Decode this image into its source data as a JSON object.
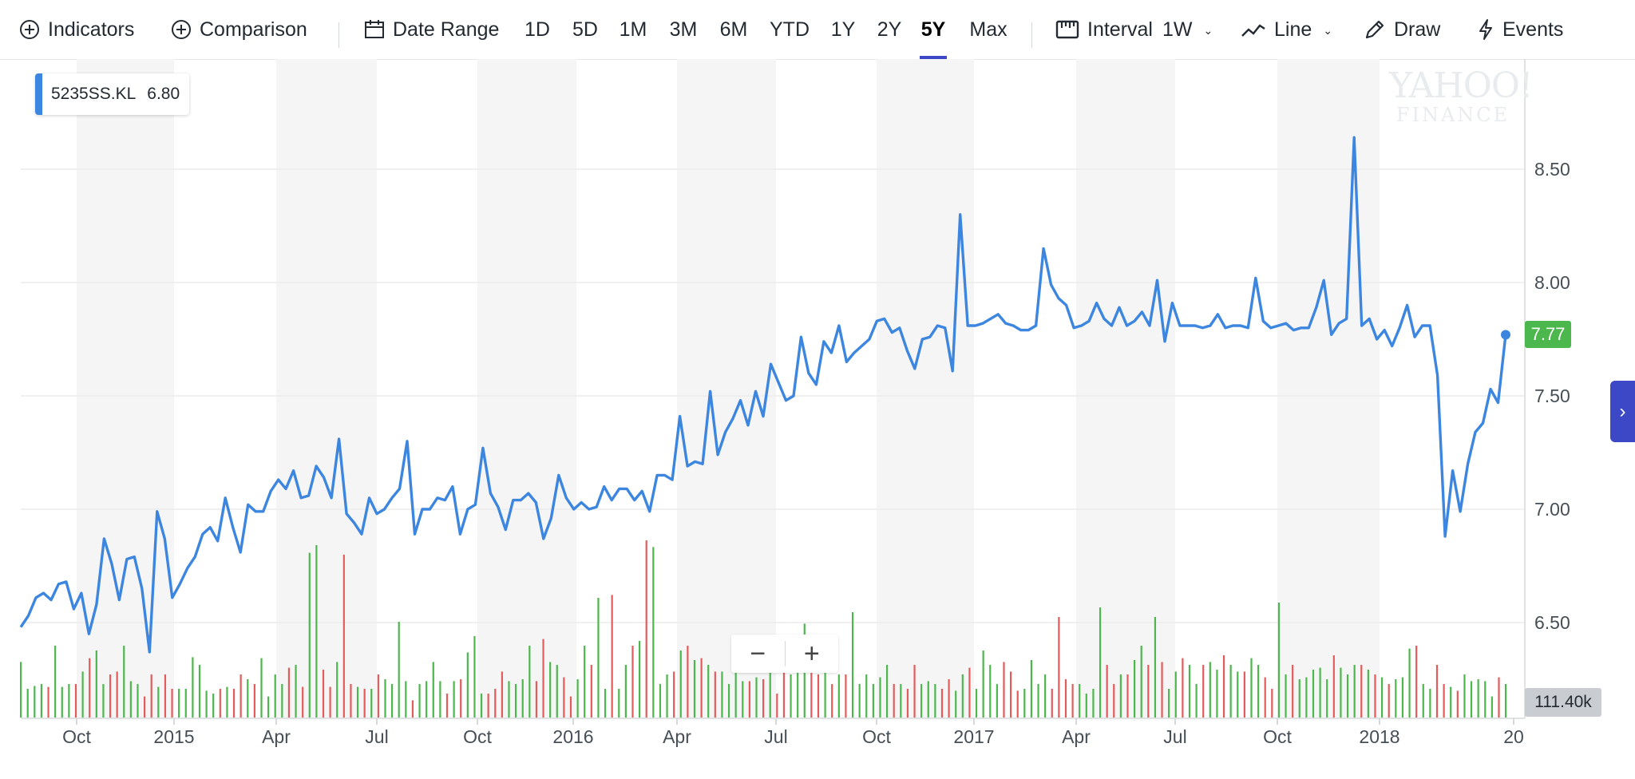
{
  "toolbar": {
    "indicators_label": "Indicators",
    "comparison_label": "Comparison",
    "date_range_label": "Date Range",
    "ranges": [
      "1D",
      "5D",
      "1M",
      "3M",
      "6M",
      "YTD",
      "1Y",
      "2Y",
      "5Y",
      "Max"
    ],
    "active_range": "5Y",
    "interval_label": "Interval",
    "interval_value": "1W",
    "chart_type_label": "Line",
    "draw_label": "Draw",
    "events_label": "Events",
    "accent_color": "#3c48c6"
  },
  "legend": {
    "symbol": "5235SS.KL",
    "value": "6.80",
    "color": "#3d86e0"
  },
  "watermark": {
    "line1": "YAHOO!",
    "line2": "FINANCE"
  },
  "current_price_label": "7.77",
  "current_volume_label": "111.40k",
  "zoom": {
    "minus": "−",
    "plus": "+"
  },
  "chart_data": {
    "type": "line",
    "series": [
      {
        "name": "5235SS.KL",
        "color": "#3d86e0",
        "values": [
          6.48,
          6.53,
          6.61,
          6.63,
          6.6,
          6.67,
          6.68,
          6.56,
          6.63,
          6.45,
          6.58,
          6.87,
          6.76,
          6.6,
          6.78,
          6.79,
          6.65,
          6.37,
          6.99,
          6.87,
          6.61,
          6.67,
          6.74,
          6.79,
          6.89,
          6.92,
          6.86,
          7.05,
          6.92,
          6.81,
          7.02,
          6.99,
          6.99,
          7.08,
          7.13,
          7.09,
          7.17,
          7.05,
          7.06,
          7.19,
          7.14,
          7.05,
          7.31,
          6.98,
          6.94,
          6.89,
          7.05,
          6.98,
          7.0,
          7.05,
          7.09,
          7.3,
          6.89,
          7.0,
          7.0,
          7.05,
          7.04,
          7.1,
          6.89,
          7.0,
          7.02,
          7.27,
          7.07,
          7.01,
          6.91,
          7.04,
          7.04,
          7.07,
          7.03,
          6.87,
          6.96,
          7.15,
          7.05,
          7.0,
          7.03,
          7.0,
          7.01,
          7.1,
          7.04,
          7.09,
          7.09,
          7.04,
          7.08,
          6.99,
          7.15,
          7.15,
          7.13,
          7.41,
          7.19,
          7.21,
          7.2,
          7.52,
          7.24,
          7.34,
          7.4,
          7.48,
          7.37,
          7.52,
          7.41,
          7.64,
          7.56,
          7.48,
          7.5,
          7.76,
          7.6,
          7.55,
          7.74,
          7.69,
          7.81,
          7.65,
          7.69,
          7.72,
          7.75,
          7.83,
          7.84,
          7.78,
          7.8,
          7.7,
          7.62,
          7.75,
          7.76,
          7.81,
          7.8,
          7.61,
          8.3,
          7.81,
          7.81,
          7.82,
          7.84,
          7.86,
          7.82,
          7.81,
          7.79,
          7.79,
          7.81,
          8.15,
          7.99,
          7.93,
          7.9,
          7.8,
          7.81,
          7.83,
          7.91,
          7.84,
          7.81,
          7.89,
          7.81,
          7.83,
          7.87,
          7.81,
          8.01,
          7.74,
          7.91,
          7.81,
          7.81,
          7.81,
          7.8,
          7.81,
          7.86,
          7.8,
          7.81,
          7.81,
          7.8,
          8.02,
          7.83,
          7.8,
          7.81,
          7.82,
          7.79,
          7.8,
          7.8,
          7.89,
          8.01,
          7.77,
          7.82,
          7.84,
          8.64,
          7.81,
          7.84,
          7.75,
          7.79,
          7.72,
          7.8,
          7.9,
          7.76,
          7.81,
          7.81,
          7.59,
          6.88,
          7.17,
          6.99,
          7.2,
          7.34,
          7.38,
          7.53,
          7.47,
          7.77
        ]
      }
    ],
    "volume": {
      "values": [
        58,
        30,
        33,
        35,
        32,
        75,
        32,
        35,
        35,
        48,
        62,
        70,
        35,
        45,
        48,
        75,
        38,
        35,
        22,
        45,
        32,
        45,
        30,
        30,
        30,
        63,
        55,
        28,
        25,
        30,
        32,
        30,
        45,
        40,
        35,
        62,
        22,
        45,
        35,
        52,
        55,
        32,
        172,
        180,
        50,
        32,
        58,
        170,
        35,
        32,
        30,
        30,
        45,
        40,
        35,
        100,
        38,
        18,
        35,
        38,
        58,
        38,
        25,
        38,
        40,
        68,
        85,
        25,
        25,
        30,
        48,
        38,
        35,
        40,
        75,
        38,
        82,
        58,
        55,
        42,
        22,
        40,
        75,
        55,
        125,
        30,
        128,
        30,
        55,
        75,
        80,
        185,
        178,
        35,
        45,
        48,
        70,
        75,
        60,
        62,
        55,
        48,
        48,
        35,
        55,
        38,
        38,
        42,
        40,
        55,
        25,
        48,
        45,
        58,
        98,
        70,
        45,
        50,
        35,
        45,
        45,
        110,
        35,
        45,
        35,
        42,
        55,
        35,
        35,
        30,
        55,
        35,
        38,
        35,
        30,
        40,
        28,
        45,
        52,
        30,
        70,
        55,
        35,
        58,
        48,
        28,
        30,
        60,
        35,
        45,
        30,
        105,
        40,
        35,
        35,
        25,
        30,
        115,
        55,
        35,
        45,
        45,
        60,
        75,
        55,
        105,
        58,
        30,
        48,
        62,
        55,
        35,
        55,
        58,
        50,
        65,
        55,
        48,
        48,
        62,
        55,
        42,
        30,
        120,
        45,
        55,
        40,
        42,
        50,
        52,
        40,
        65,
        52,
        45,
        55,
        55,
        50,
        45,
        42,
        35,
        40,
        42,
        72,
        75,
        35,
        30,
        55,
        35,
        32,
        28,
        45,
        38,
        40,
        38,
        22,
        42,
        35
      ],
      "colors_note": "green/red per bar",
      "up_color": "#4cb74d",
      "down_color": "#e45b5b"
    },
    "x_tick_labels": [
      "Oct",
      "2015",
      "Apr",
      "Jul",
      "Oct",
      "2016",
      "Apr",
      "Jul",
      "Oct",
      "2017",
      "Apr",
      "Jul",
      "Oct",
      "2018",
      "20"
    ],
    "y_tick_labels": [
      "6.50",
      "7.00",
      "7.50",
      "8.00",
      "8.50"
    ],
    "ylim": [
      6.3,
      8.85
    ],
    "grid": true,
    "shaded_bands": true,
    "legend_position": "top-left"
  }
}
